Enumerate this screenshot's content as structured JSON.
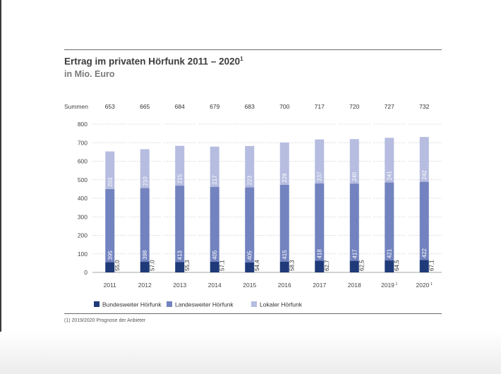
{
  "title": "Ertrag im privaten Hörfunk 2011 – 2020",
  "title_note": "1",
  "subtitle": "in Mio. Euro",
  "footnote": "(1)   2019/2020 Prognose der Anbieter",
  "chart_data": {
    "type": "bar",
    "stacked": true,
    "categories": [
      "2011",
      "2012",
      "2013",
      "2014",
      "2015",
      "2016",
      "2017",
      "2018",
      "2019",
      "2020"
    ],
    "category_notes": [
      "",
      "",
      "",
      "",
      "",
      "",
      "",
      "",
      "1",
      "1"
    ],
    "series": [
      {
        "name": "Bundesweiter Hörfunk",
        "color": "#1f3a78",
        "values": [
          55.0,
          57.0,
          55.3,
          57.1,
          54.4,
          58.3,
          62.7,
          62.5,
          64.5,
          67.1
        ],
        "labels": [
          "55,0",
          "57,0",
          "55,3",
          "57,1",
          "54,4",
          "58,3",
          "62,7",
          "62,5",
          "64,5",
          "67,1"
        ]
      },
      {
        "name": "Landesweiter Hörfunk",
        "color": "#7283bf",
        "values": [
          395,
          398,
          413,
          405,
          405,
          415,
          418,
          417,
          421,
          422
        ],
        "labels": [
          "395",
          "398",
          "413",
          "405",
          "405",
          "415",
          "418",
          "417",
          "421",
          "422"
        ]
      },
      {
        "name": "Lokaler Hörfunk",
        "color": "#b6bde0",
        "values": [
          203,
          210,
          215,
          217,
          223,
          228,
          237,
          240,
          241,
          242
        ],
        "labels": [
          "203",
          "210",
          "215",
          "217",
          "223",
          "228",
          "237",
          "240",
          "241",
          "242"
        ]
      }
    ],
    "totals_label": "Summen",
    "totals": [
      "653",
      "665",
      "684",
      "679",
      "683",
      "700",
      "717",
      "720",
      "727",
      "732"
    ],
    "ylim": [
      0,
      800
    ],
    "yticks": [
      0,
      100,
      200,
      300,
      400,
      500,
      600,
      700,
      800
    ],
    "grid": true,
    "legend_position": "bottom"
  }
}
